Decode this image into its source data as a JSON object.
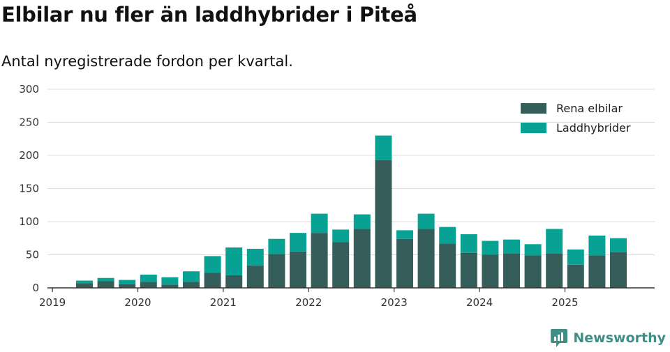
{
  "chart_data": {
    "type": "bar",
    "stacked": true,
    "title": "Elbilar nu fler än laddhybrider i Piteå",
    "subtitle": "Antal nyregistrerade fordon per kvartal.",
    "xlabel": "",
    "ylabel": "",
    "ylim": [
      0,
      300
    ],
    "yticks": [
      0,
      50,
      100,
      150,
      200,
      250,
      300
    ],
    "grid": true,
    "legend_position": "top-right",
    "x_tick_labels": [
      "2019",
      "2020",
      "2021",
      "2022",
      "2023",
      "2024",
      "2025"
    ],
    "categories": [
      "2019 Q2",
      "2019 Q3",
      "2019 Q4",
      "2020 Q1",
      "2020 Q2",
      "2020 Q3",
      "2020 Q4",
      "2021 Q1",
      "2021 Q2",
      "2021 Q3",
      "2021 Q4",
      "2022 Q1",
      "2022 Q2",
      "2022 Q3",
      "2022 Q4",
      "2023 Q1",
      "2023 Q2",
      "2023 Q3",
      "2023 Q4",
      "2024 Q1",
      "2024 Q2",
      "2024 Q3",
      "2024 Q4",
      "2025 Q1",
      "2025 Q2",
      "2025 Q3"
    ],
    "series": [
      {
        "name": "Rena elbilar",
        "color": "#355e5a",
        "values": [
          7,
          10,
          6,
          9,
          5,
          9,
          23,
          19,
          34,
          51,
          55,
          83,
          69,
          89,
          193,
          74,
          89,
          67,
          53,
          50,
          52,
          49,
          52,
          35,
          49,
          54
        ]
      },
      {
        "name": "Laddhybrider",
        "color": "#07a293",
        "values": [
          4,
          5,
          6,
          11,
          11,
          16,
          25,
          42,
          25,
          23,
          28,
          29,
          19,
          22,
          37,
          13,
          23,
          25,
          28,
          21,
          21,
          17,
          37,
          23,
          30,
          21
        ]
      }
    ]
  },
  "branding": {
    "name": "Newsworthy",
    "icon": "newsworthy-logo-icon",
    "color": "#3f8f86"
  }
}
